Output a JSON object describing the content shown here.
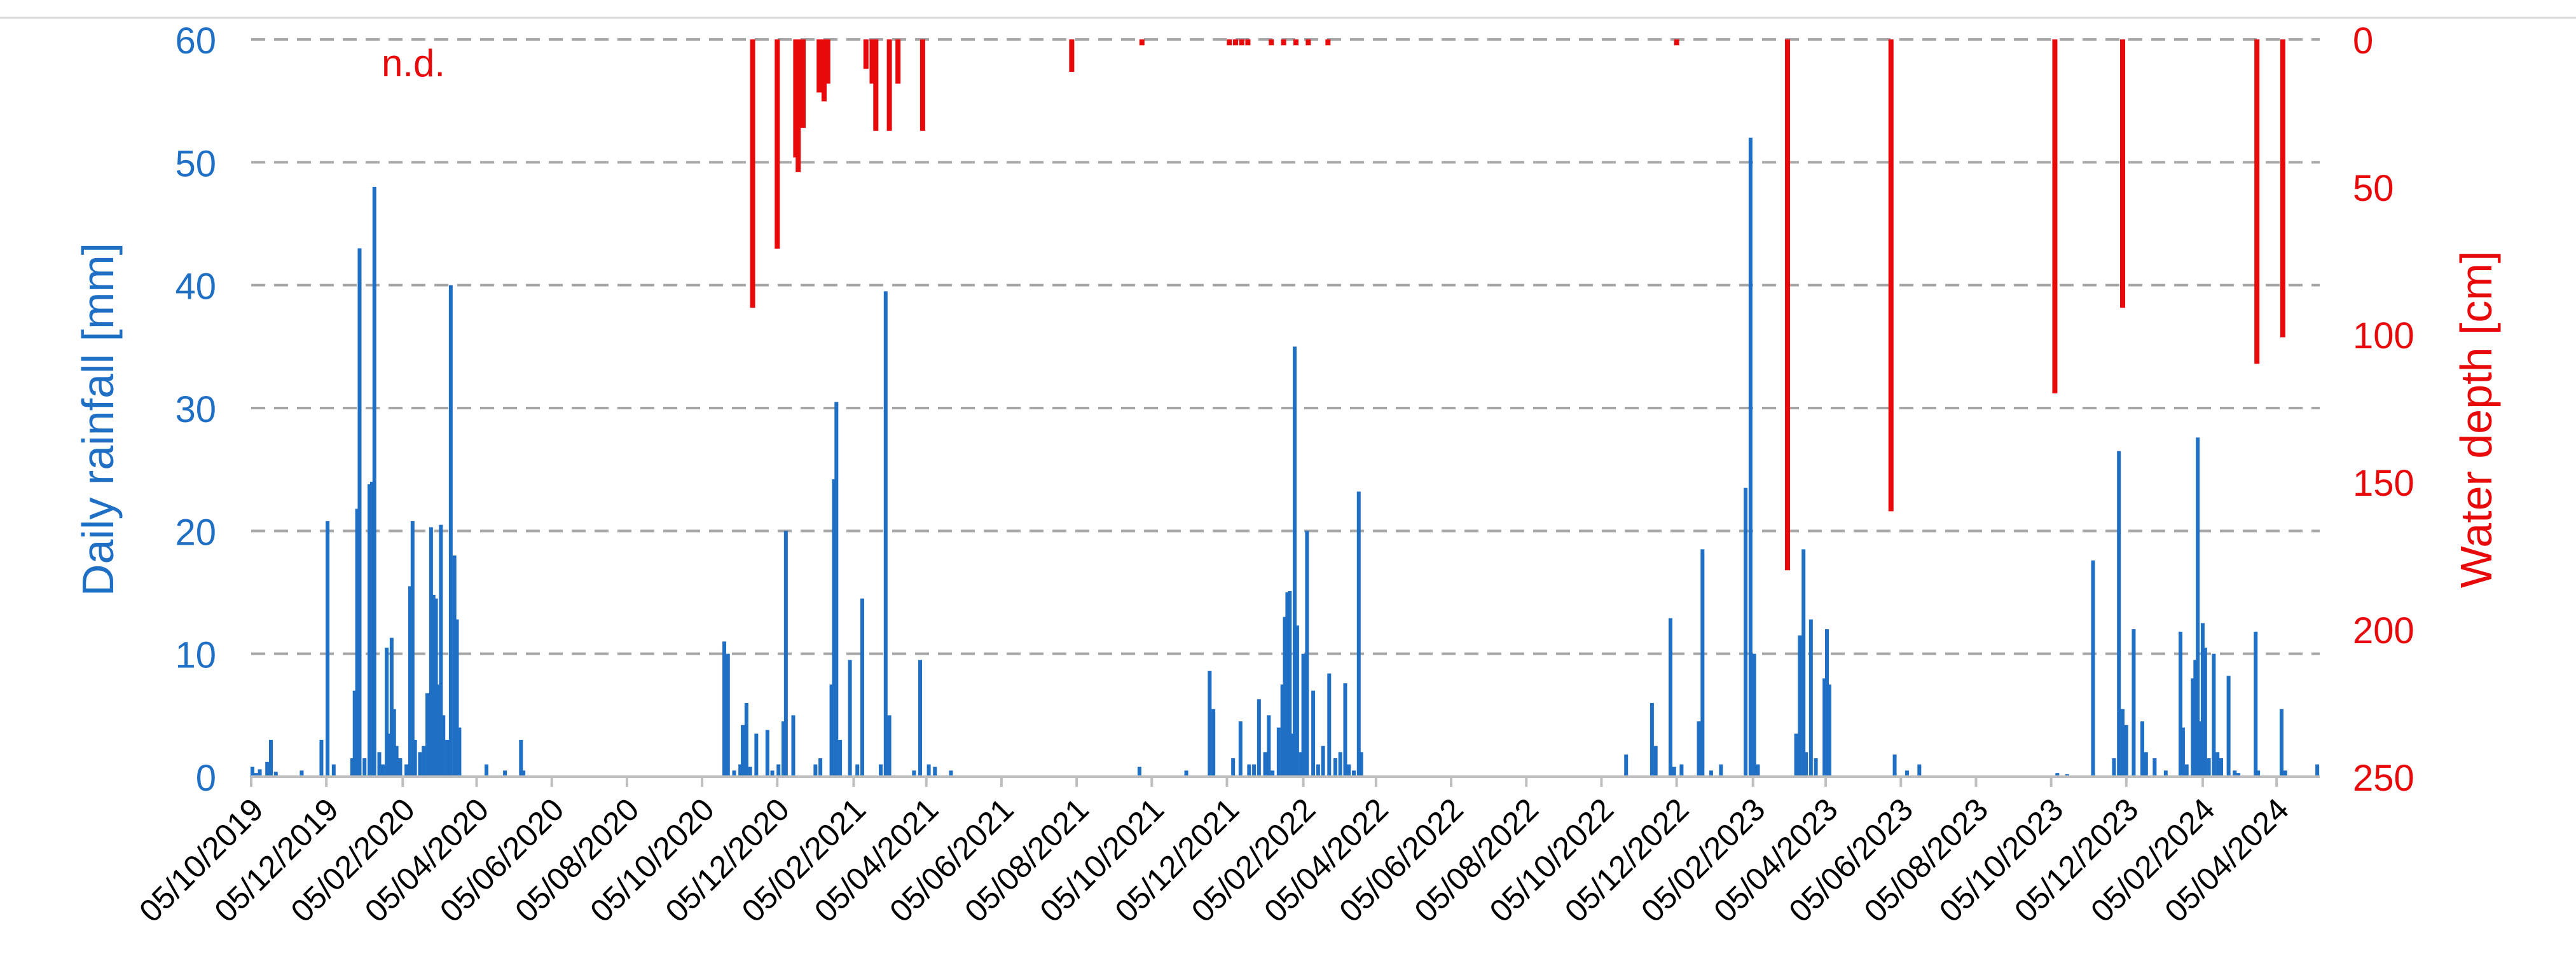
{
  "chart_data": {
    "type": "bar",
    "left_axis": {
      "label": "Daily rainfall [mm]",
      "range": [
        0,
        60
      ],
      "ticks": [
        "0",
        "10",
        "20",
        "30",
        "40",
        "50",
        "60"
      ],
      "color": "#1f6fc5"
    },
    "right_axis": {
      "label": "Water depth [cm]",
      "range": [
        0,
        250
      ],
      "inverted": true,
      "ticks": [
        "0",
        "50",
        "100",
        "150",
        "200",
        "250"
      ],
      "color": "#e8090b"
    },
    "x_axis": {
      "type": "date",
      "range": [
        "2019-10-05",
        "2024-05-10"
      ],
      "tick_labels": [
        "05/10/2019",
        "05/12/2019",
        "05/02/2020",
        "05/04/2020",
        "05/06/2020",
        "05/08/2020",
        "05/10/2020",
        "05/12/2020",
        "05/02/2021",
        "05/04/2021",
        "05/06/2021",
        "05/08/2021",
        "05/10/2021",
        "05/12/2021",
        "05/02/2022",
        "05/04/2022",
        "05/06/2022",
        "05/08/2022",
        "05/10/2022",
        "05/12/2022",
        "05/02/2023",
        "05/04/2023",
        "05/06/2023",
        "05/08/2023",
        "05/10/2023",
        "05/12/2023",
        "05/02/2024",
        "05/04/2024"
      ]
    },
    "grid": "horizontal-dashed",
    "annotation": "n.d.",
    "series": [
      {
        "color": "#1f6fc5",
        "axis": "left",
        "points": [
          [
            "2019-10-06",
            0.8
          ],
          [
            "2019-10-09",
            0.3
          ],
          [
            "2019-10-12",
            0.6
          ],
          [
            "2019-10-18",
            1.2
          ],
          [
            "2019-10-21",
            3.0
          ],
          [
            "2019-10-25",
            0.4
          ],
          [
            "2019-11-15",
            0.5
          ],
          [
            "2019-12-01",
            3.0
          ],
          [
            "2019-12-06",
            20.8
          ],
          [
            "2019-12-11",
            1.0
          ],
          [
            "2019-12-26",
            1.5
          ],
          [
            "2019-12-28",
            7.0
          ],
          [
            "2019-12-30",
            21.8
          ],
          [
            "2020-01-01",
            43.0
          ],
          [
            "2020-01-05",
            1.5
          ],
          [
            "2020-01-09",
            23.8
          ],
          [
            "2020-01-11",
            24.0
          ],
          [
            "2020-01-13",
            48.0
          ],
          [
            "2020-01-17",
            2.0
          ],
          [
            "2020-01-20",
            1.0
          ],
          [
            "2020-01-23",
            10.5
          ],
          [
            "2020-01-25",
            3.5
          ],
          [
            "2020-01-27",
            11.3
          ],
          [
            "2020-01-29",
            5.5
          ],
          [
            "2020-01-31",
            2.5
          ],
          [
            "2020-02-03",
            1.5
          ],
          [
            "2020-02-08",
            1.0
          ],
          [
            "2020-02-11",
            15.5
          ],
          [
            "2020-02-13",
            20.8
          ],
          [
            "2020-02-15",
            3.0
          ],
          [
            "2020-02-19",
            2.0
          ],
          [
            "2020-02-22",
            2.5
          ],
          [
            "2020-02-25",
            6.8
          ],
          [
            "2020-02-28",
            20.3
          ],
          [
            "2020-03-01",
            14.8
          ],
          [
            "2020-03-03",
            14.5
          ],
          [
            "2020-03-05",
            7.5
          ],
          [
            "2020-03-07",
            20.5
          ],
          [
            "2020-03-09",
            5.0
          ],
          [
            "2020-03-12",
            3.0
          ],
          [
            "2020-03-15",
            40.0
          ],
          [
            "2020-03-18",
            18.0
          ],
          [
            "2020-03-20",
            12.8
          ],
          [
            "2020-03-22",
            4.0
          ],
          [
            "2020-04-13",
            1.0
          ],
          [
            "2020-04-28",
            0.5
          ],
          [
            "2020-05-11",
            3.0
          ],
          [
            "2020-05-13",
            0.5
          ],
          [
            "2020-10-23",
            11.0
          ],
          [
            "2020-10-26",
            10.0
          ],
          [
            "2020-10-31",
            0.5
          ],
          [
            "2020-11-05",
            1.0
          ],
          [
            "2020-11-07",
            4.2
          ],
          [
            "2020-11-10",
            6.0
          ],
          [
            "2020-11-13",
            0.8
          ],
          [
            "2020-11-18",
            3.5
          ],
          [
            "2020-11-27",
            3.8
          ],
          [
            "2020-12-01",
            0.5
          ],
          [
            "2020-12-06",
            1.0
          ],
          [
            "2020-12-10",
            4.5
          ],
          [
            "2020-12-12",
            20.0
          ],
          [
            "2020-12-18",
            5.0
          ],
          [
            "2021-01-05",
            1.0
          ],
          [
            "2021-01-09",
            1.5
          ],
          [
            "2021-01-18",
            7.5
          ],
          [
            "2021-01-20",
            24.2
          ],
          [
            "2021-01-22",
            30.5
          ],
          [
            "2021-01-25",
            3.0
          ],
          [
            "2021-02-02",
            9.5
          ],
          [
            "2021-02-08",
            1.0
          ],
          [
            "2021-02-12",
            14.5
          ],
          [
            "2021-02-27",
            1.0
          ],
          [
            "2021-03-03",
            39.5
          ],
          [
            "2021-03-06",
            5.0
          ],
          [
            "2021-03-26",
            0.5
          ],
          [
            "2021-03-31",
            9.5
          ],
          [
            "2021-04-07",
            1.0
          ],
          [
            "2021-04-12",
            0.8
          ],
          [
            "2021-04-25",
            0.5
          ],
          [
            "2021-09-25",
            0.8
          ],
          [
            "2021-11-02",
            0.5
          ],
          [
            "2021-11-21",
            8.6
          ],
          [
            "2021-11-24",
            5.5
          ],
          [
            "2021-12-10",
            1.5
          ],
          [
            "2021-12-16",
            4.5
          ],
          [
            "2021-12-23",
            1.0
          ],
          [
            "2021-12-27",
            1.0
          ],
          [
            "2021-12-31",
            6.3
          ],
          [
            "2022-01-05",
            2.0
          ],
          [
            "2022-01-08",
            5.0
          ],
          [
            "2022-01-11",
            0.5
          ],
          [
            "2022-01-16",
            4.0
          ],
          [
            "2022-01-19",
            7.5
          ],
          [
            "2022-01-21",
            13.0
          ],
          [
            "2022-01-23",
            15.0
          ],
          [
            "2022-01-25",
            15.1
          ],
          [
            "2022-01-27",
            3.5
          ],
          [
            "2022-01-29",
            35.0
          ],
          [
            "2022-01-31",
            12.3
          ],
          [
            "2022-02-03",
            2.0
          ],
          [
            "2022-02-05",
            10.0
          ],
          [
            "2022-02-08",
            20.0
          ],
          [
            "2022-02-13",
            7.0
          ],
          [
            "2022-02-17",
            1.0
          ],
          [
            "2022-02-21",
            2.5
          ],
          [
            "2022-02-26",
            8.4
          ],
          [
            "2022-03-03",
            1.5
          ],
          [
            "2022-03-07",
            2.0
          ],
          [
            "2022-03-11",
            7.6
          ],
          [
            "2022-03-14",
            1.0
          ],
          [
            "2022-03-18",
            0.5
          ],
          [
            "2022-03-22",
            23.2
          ],
          [
            "2022-03-24",
            2.0
          ],
          [
            "2022-10-25",
            1.8
          ],
          [
            "2022-11-15",
            6.0
          ],
          [
            "2022-11-18",
            2.5
          ],
          [
            "2022-11-30",
            12.9
          ],
          [
            "2022-12-03",
            0.8
          ],
          [
            "2022-12-09",
            1.0
          ],
          [
            "2022-12-23",
            4.5
          ],
          [
            "2022-12-26",
            18.5
          ],
          [
            "2023-01-02",
            0.5
          ],
          [
            "2023-01-10",
            1.0
          ],
          [
            "2023-01-30",
            23.5
          ],
          [
            "2023-02-03",
            52.0
          ],
          [
            "2023-02-06",
            10.0
          ],
          [
            "2023-02-09",
            1.0
          ],
          [
            "2023-03-12",
            3.5
          ],
          [
            "2023-03-15",
            11.5
          ],
          [
            "2023-03-18",
            18.5
          ],
          [
            "2023-03-20",
            2.0
          ],
          [
            "2023-03-24",
            12.8
          ],
          [
            "2023-03-28",
            1.5
          ],
          [
            "2023-04-04",
            8.0
          ],
          [
            "2023-04-06",
            12.0
          ],
          [
            "2023-04-08",
            7.5
          ],
          [
            "2023-05-31",
            1.8
          ],
          [
            "2023-06-10",
            0.5
          ],
          [
            "2023-06-20",
            1.0
          ],
          [
            "2023-10-10",
            0.3
          ],
          [
            "2023-10-18",
            0.2
          ],
          [
            "2023-11-08",
            17.6
          ],
          [
            "2023-11-25",
            1.5
          ],
          [
            "2023-11-29",
            26.5
          ],
          [
            "2023-12-02",
            5.5
          ],
          [
            "2023-12-05",
            4.2
          ],
          [
            "2023-12-11",
            12.0
          ],
          [
            "2023-12-18",
            4.5
          ],
          [
            "2023-12-21",
            2.0
          ],
          [
            "2023-12-28",
            1.5
          ],
          [
            "2024-01-06",
            0.5
          ],
          [
            "2024-01-18",
            11.8
          ],
          [
            "2024-01-20",
            4.0
          ],
          [
            "2024-01-23",
            1.0
          ],
          [
            "2024-01-28",
            8.0
          ],
          [
            "2024-01-30",
            9.5
          ],
          [
            "2024-02-01",
            27.6
          ],
          [
            "2024-02-03",
            4.5
          ],
          [
            "2024-02-05",
            12.5
          ],
          [
            "2024-02-07",
            10.5
          ],
          [
            "2024-02-10",
            1.5
          ],
          [
            "2024-02-14",
            10.0
          ],
          [
            "2024-02-17",
            2.0
          ],
          [
            "2024-02-20",
            1.5
          ],
          [
            "2024-02-26",
            8.2
          ],
          [
            "2024-03-02",
            0.5
          ],
          [
            "2024-03-05",
            0.3
          ],
          [
            "2024-03-19",
            11.8
          ],
          [
            "2024-03-21",
            0.5
          ],
          [
            "2024-04-09",
            5.5
          ],
          [
            "2024-04-12",
            0.5
          ],
          [
            "2024-05-08",
            1.0
          ]
        ]
      },
      {
        "color": "#e8090b",
        "axis": "right",
        "points": [
          [
            "2020-11-15",
            91
          ],
          [
            "2020-12-05",
            71
          ],
          [
            "2020-12-20",
            40
          ],
          [
            "2020-12-22",
            45
          ],
          [
            "2020-12-26",
            30
          ],
          [
            "2021-01-08",
            18
          ],
          [
            "2021-01-12",
            21
          ],
          [
            "2021-01-15",
            15
          ],
          [
            "2021-02-15",
            10
          ],
          [
            "2021-02-20",
            15
          ],
          [
            "2021-02-23",
            31
          ],
          [
            "2021-03-06",
            31
          ],
          [
            "2021-03-13",
            15
          ],
          [
            "2021-04-02",
            31
          ],
          [
            "2021-08-01",
            11
          ],
          [
            "2021-09-27",
            2
          ],
          [
            "2021-12-07",
            2
          ],
          [
            "2021-12-12",
            2
          ],
          [
            "2021-12-17",
            2
          ],
          [
            "2021-12-22",
            2
          ],
          [
            "2022-01-10",
            2
          ],
          [
            "2022-01-20",
            2
          ],
          [
            "2022-01-30",
            2
          ],
          [
            "2022-02-09",
            2
          ],
          [
            "2022-02-25",
            2
          ],
          [
            "2022-12-05",
            2
          ],
          [
            "2023-03-05",
            180
          ],
          [
            "2023-05-28",
            160
          ],
          [
            "2023-10-08",
            120
          ],
          [
            "2023-12-02",
            91
          ],
          [
            "2024-03-20",
            110
          ],
          [
            "2024-04-10",
            101
          ]
        ]
      }
    ]
  }
}
